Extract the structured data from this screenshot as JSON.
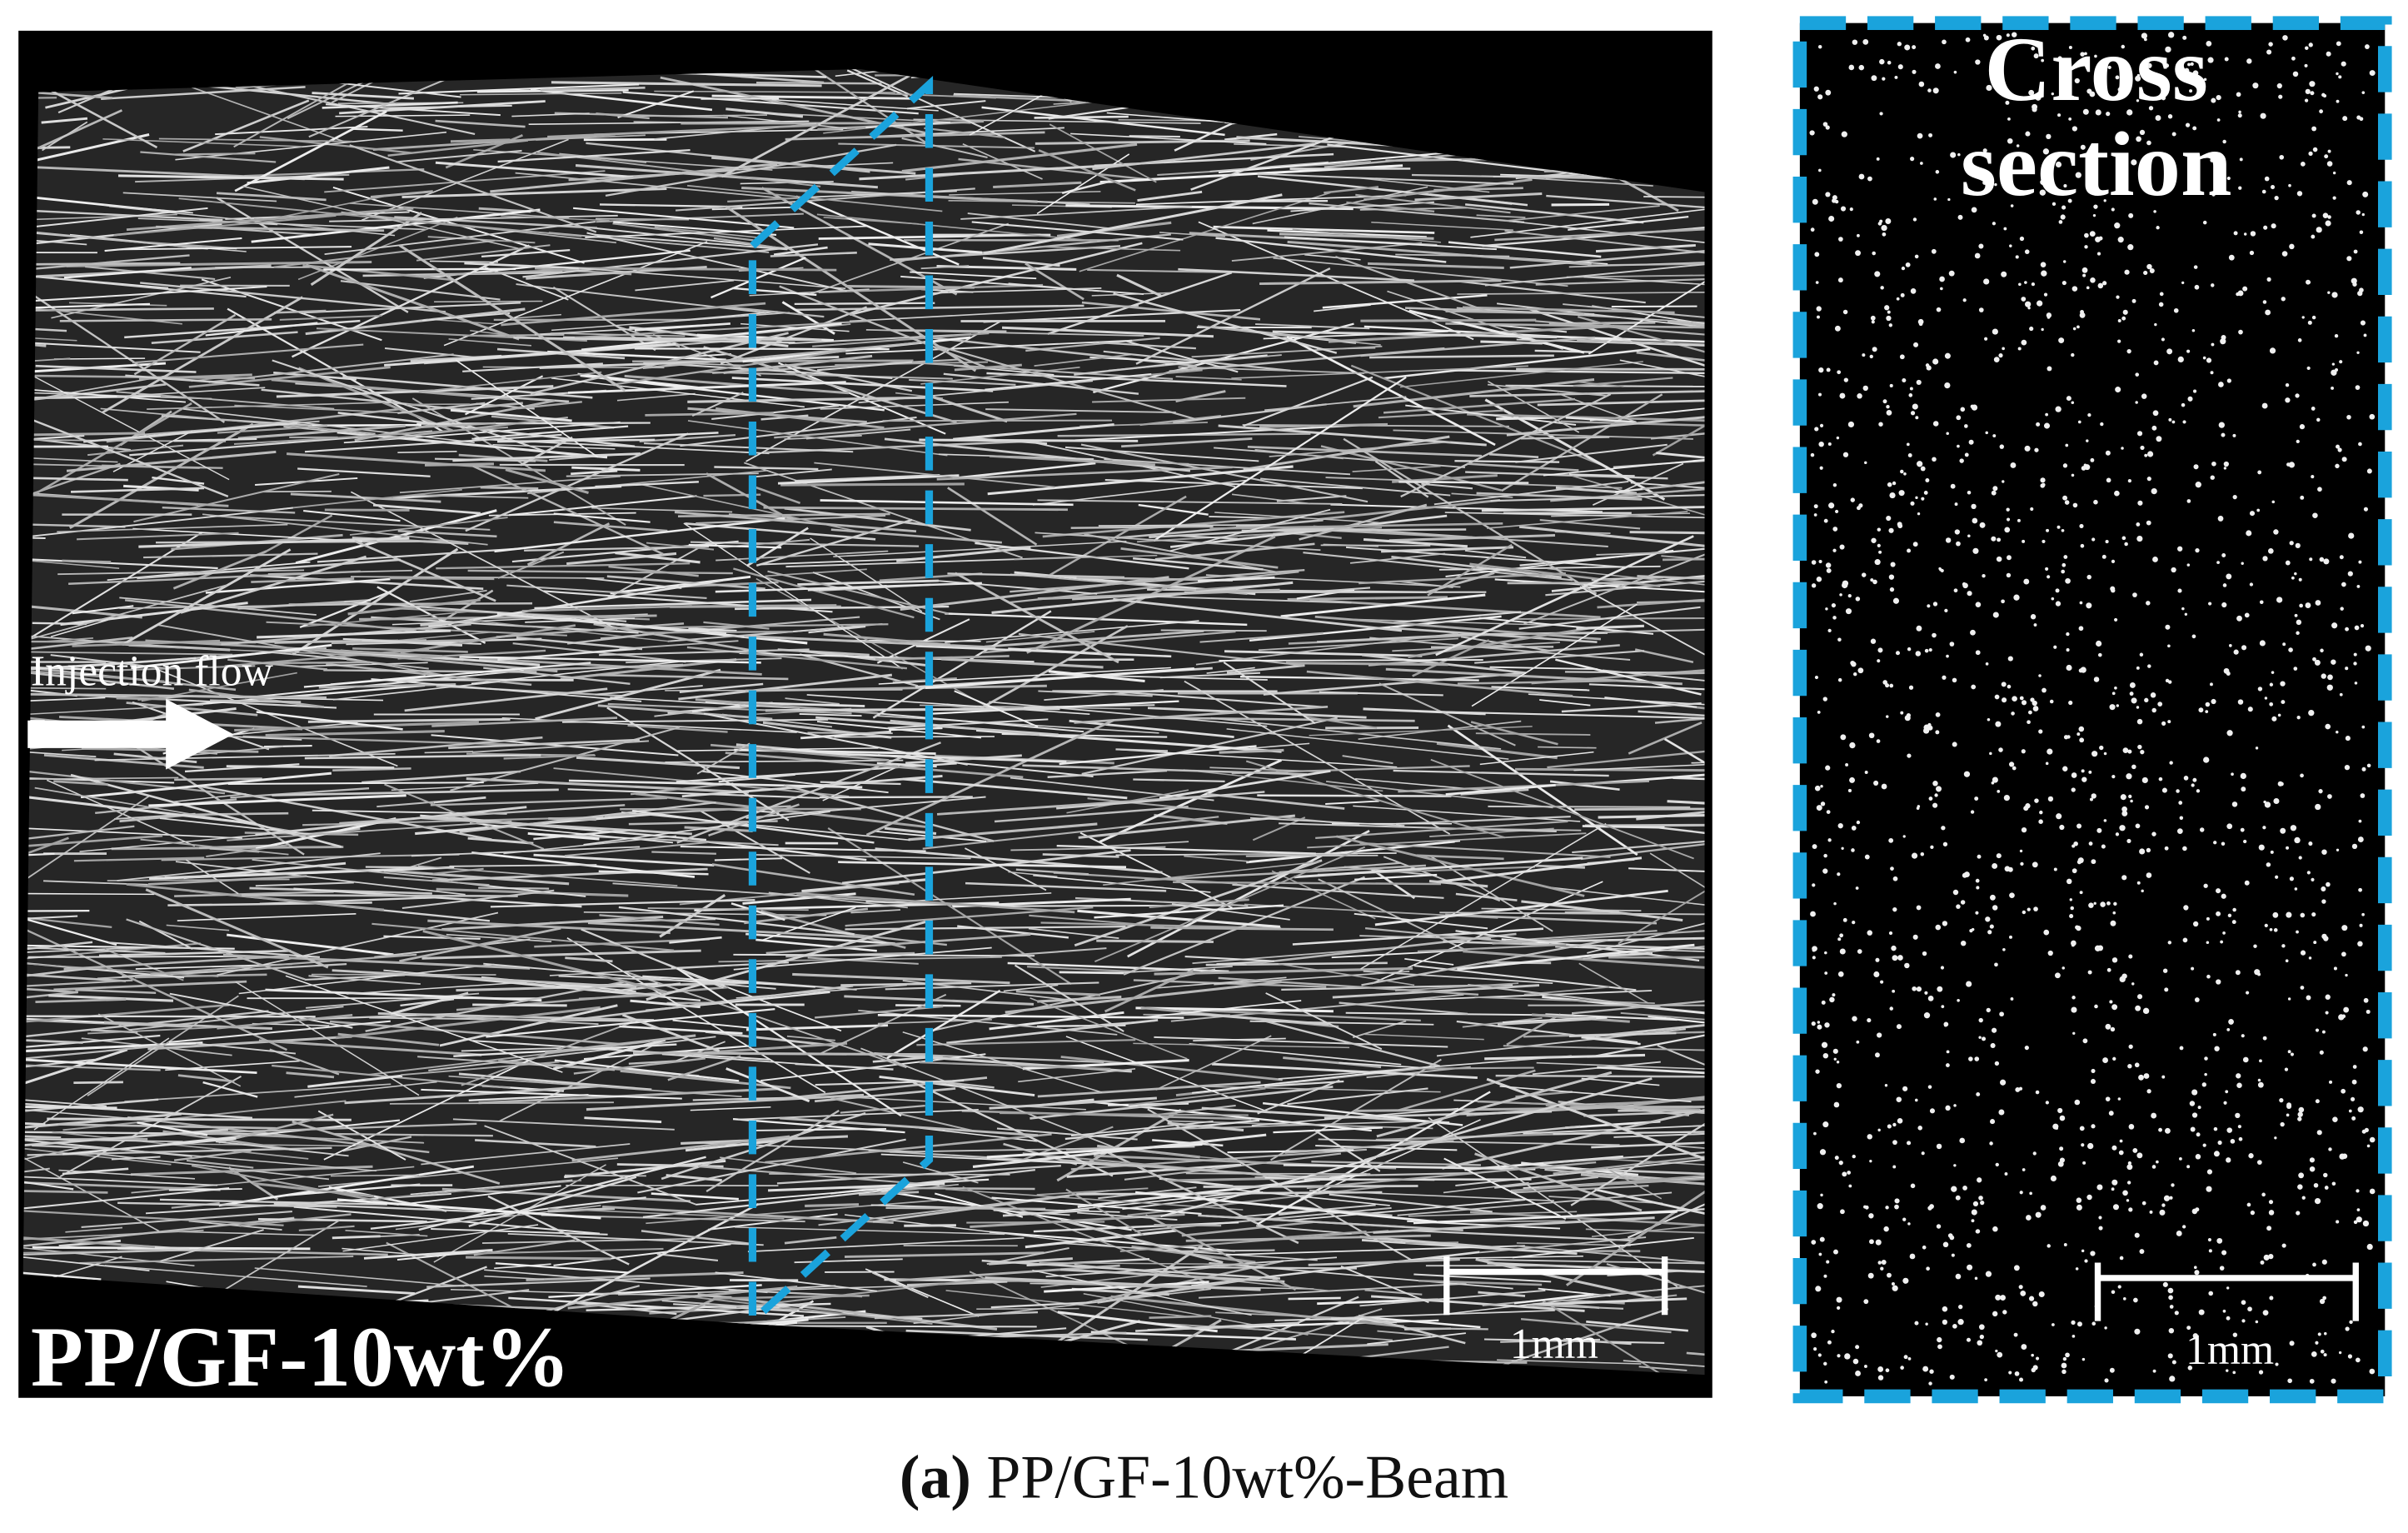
{
  "figure": {
    "main_panel": {
      "flow_label": "Injection flow",
      "sample_label": "PP/GF-10wt%",
      "scale_label": "1mm"
    },
    "cross_section_panel": {
      "title": "Cross section",
      "scale_label": "1mm"
    },
    "caption": {
      "label": "(a)",
      "text": "PP/GF-10wt%-Beam"
    }
  }
}
